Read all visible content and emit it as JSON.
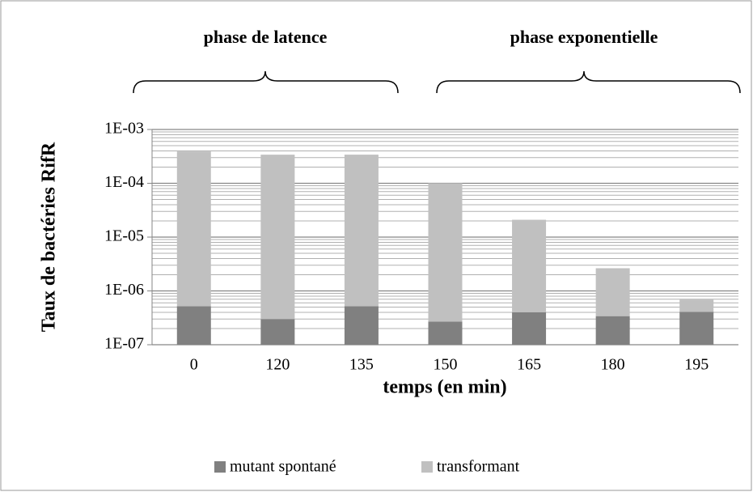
{
  "chart_data": {
    "type": "stacked_bar",
    "y_label": "Taux de bactéries RifR",
    "x_label": "temps (en min)",
    "annotations": [
      "phase de latence",
      "phase exponentielle"
    ],
    "categories": [
      "0",
      "120",
      "135",
      "150",
      "165",
      "180",
      "195"
    ],
    "series": [
      {
        "name": "mutant spontané",
        "color": "#808080",
        "values": [
          5.2e-07,
          3e-07,
          5.2e-07,
          2.7e-07,
          4e-07,
          3.4e-07,
          4.1e-07
        ]
      },
      {
        "name": "transformant",
        "color": "#c0c0c0",
        "values": [
          0.00039,
          0.00034,
          0.00034,
          0.0001,
          2.06e-05,
          2.3e-06,
          2.8e-07
        ]
      }
    ],
    "log_scale": true,
    "ylim": [
      1e-07,
      0.001
    ],
    "yticks": [
      {
        "value": 1e-07,
        "label": "1E-07"
      },
      {
        "value": 1e-06,
        "label": "1E-06"
      },
      {
        "value": 1e-05,
        "label": "1E-05"
      },
      {
        "value": 0.0001,
        "label": "1E-04"
      },
      {
        "value": 0.001,
        "label": "1E-03"
      }
    ],
    "grid": true,
    "legend": "bottom"
  }
}
